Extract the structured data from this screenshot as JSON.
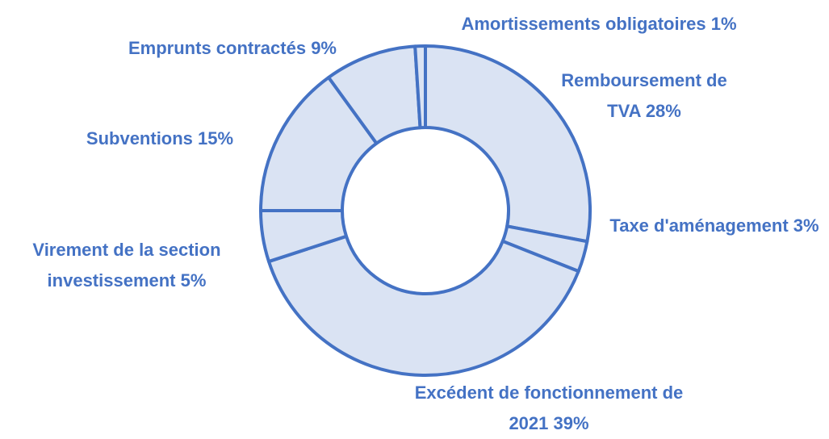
{
  "chart_data": {
    "type": "donut",
    "categories": [
      "Remboursement de TVA",
      "Taxe d'aménagement",
      "Excédent de fonctionnement de 2021",
      "Virement de la section investissement",
      "Subventions",
      "Emprunts contractés",
      "Amortissements obligatoires"
    ],
    "values": [
      28,
      3,
      39,
      5,
      15,
      9,
      1
    ],
    "value_labels": [
      "28%",
      "3%",
      "39%",
      "5%",
      "15%",
      "9%",
      "1%"
    ],
    "color": "#dae3f3",
    "edge_color": "#4472c4"
  }
}
